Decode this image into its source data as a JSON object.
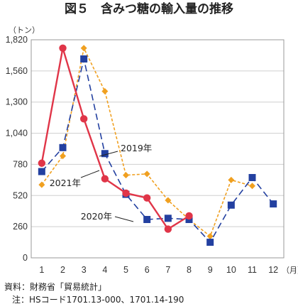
{
  "chart_data": {
    "type": "line",
    "title": "図５　含みつ糖の輸入量の推移",
    "ylabel": "（トン）",
    "x_unit": "（月）",
    "categories": [
      "1",
      "2",
      "3",
      "4",
      "5",
      "6",
      "7",
      "8",
      "9",
      "10",
      "11",
      "12"
    ],
    "y_ticks": [
      "0",
      "260",
      "520",
      "780",
      "1,040",
      "1,300",
      "1,560",
      "1,820"
    ],
    "ylim": [
      0,
      1820
    ],
    "grid": true,
    "series": [
      {
        "name": "2019年",
        "values": [
          610,
          850,
          1750,
          1390,
          690,
          700,
          480,
          320,
          180,
          650,
          600,
          null
        ],
        "color": "#f0a020",
        "style": "dotted",
        "marker": "diamond"
      },
      {
        "name": "2020年",
        "values": [
          720,
          920,
          1660,
          870,
          530,
          320,
          330,
          320,
          130,
          440,
          670,
          450
        ],
        "color": "#2340a0",
        "style": "dashed",
        "marker": "square"
      },
      {
        "name": "2021年",
        "values": [
          790,
          1750,
          1160,
          660,
          540,
          500,
          240,
          350,
          null,
          null,
          null,
          null
        ],
        "color": "#e03548",
        "style": "solid",
        "marker": "circle"
      }
    ],
    "callouts": [
      {
        "series": 0,
        "text": "2019年"
      },
      {
        "series": 2,
        "text": "2021年"
      },
      {
        "series": 1,
        "text": "2020年"
      }
    ]
  },
  "footnotes": {
    "source": "資料：財務省「貿易統計」",
    "note": "注：HSコード1701.13-000、1701.14-190"
  }
}
